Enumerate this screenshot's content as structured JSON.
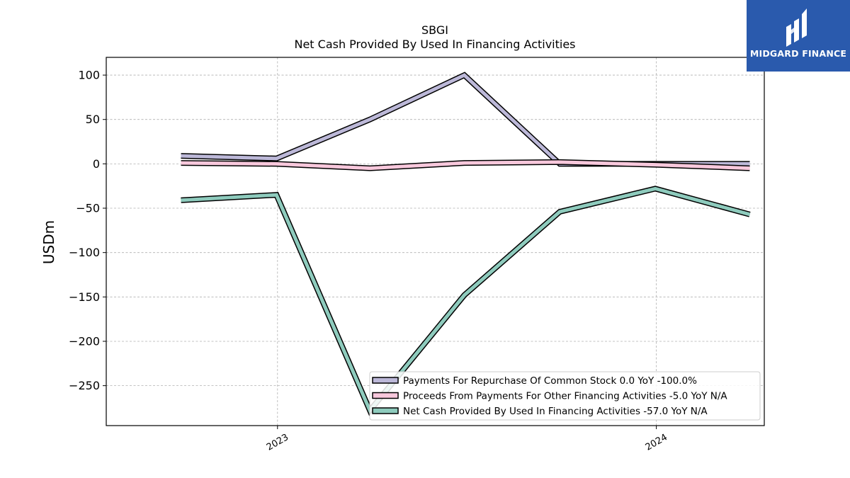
{
  "chart_data": {
    "type": "line",
    "title": "SBGI",
    "subtitle": "Net Cash Provided By Used In Financing Activities",
    "ylabel": "USDm",
    "xlabel": "",
    "ylim": [
      -295,
      120
    ],
    "yticks": [
      100,
      50,
      0,
      -50,
      -100,
      -150,
      -200,
      -250
    ],
    "ytick_labels": [
      "100",
      "50",
      "0",
      "−50",
      "−100",
      "−150",
      "−200",
      "−250"
    ],
    "xlim": [
      "2022-07-20",
      "2024-04-14"
    ],
    "xticks": [
      {
        "date": "2023-01-01",
        "label": "2023"
      },
      {
        "date": "2024-01-01",
        "label": "2024"
      }
    ],
    "grid": true,
    "legend_position": "lower-right",
    "x": [
      "2022-09-30",
      "2022-12-31",
      "2023-03-31",
      "2023-06-30",
      "2023-09-30",
      "2023-12-31",
      "2024-03-31"
    ],
    "series": [
      {
        "name": "Payments For Repurchase Of Common Stock",
        "legend_label": "Payments For Repurchase Of Common Stock  0.0 YoY -100.0%",
        "color": "#bcb8d8",
        "values": [
          9,
          6,
          50,
          100,
          0,
          0,
          0
        ]
      },
      {
        "name": "Proceeds From Payments For Other Financing Activities",
        "legend_label": "Proceeds From Payments For Other Financing Activities  -5.0 YoY N/A",
        "color": "#f8c8dc",
        "values": [
          1,
          0,
          -5,
          1,
          2,
          -1,
          -5
        ]
      },
      {
        "name": "Net Cash Provided By Used In Financing Activities",
        "legend_label": "Net Cash Provided By Used In Financing Activities  -57.0 YoY N/A",
        "color": "#8ecbbd",
        "values": [
          -41,
          -35,
          -278,
          -148,
          -54,
          -28,
          -57
        ]
      }
    ]
  },
  "logo": {
    "text": "MIDGARD FINANCE",
    "color": "#2a5aad"
  }
}
